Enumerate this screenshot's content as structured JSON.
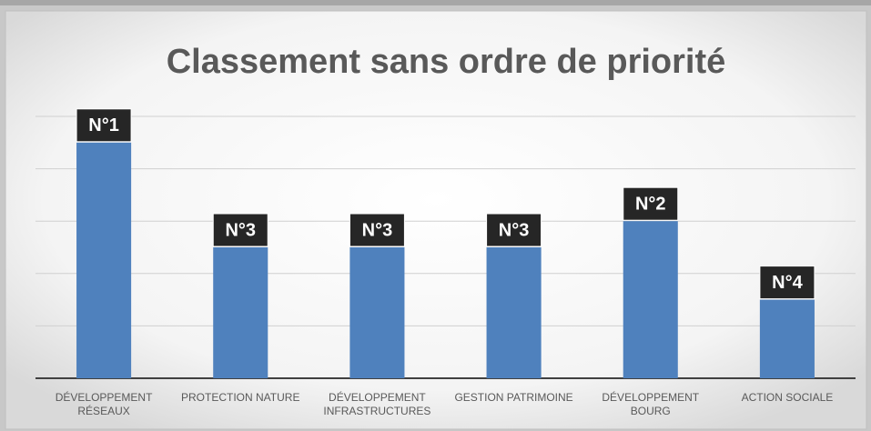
{
  "chart_data": {
    "type": "bar",
    "title": "Classement  sans ordre de priorité",
    "categories": [
      "DÉVELOPPEMENT RÉSEAUX",
      "PROTECTION NATURE",
      "DÉVELOPPEMENT INFRASTRUCTURES",
      "GESTION PATRIMOINE",
      "DÉVELOPPEMENT BOURG",
      "ACTION SOCIALE"
    ],
    "values": [
      4.5,
      2.5,
      2.5,
      2.5,
      3,
      1.5
    ],
    "annotations": [
      "N°1",
      "N°3",
      "N°3",
      "N°3",
      "N°2",
      "N°4"
    ],
    "color": "#4f81bd",
    "ylim": [
      0,
      5
    ],
    "yticks": [
      0,
      1,
      2,
      3,
      4,
      5
    ],
    "grid": true,
    "show_y_tick_labels": false
  }
}
